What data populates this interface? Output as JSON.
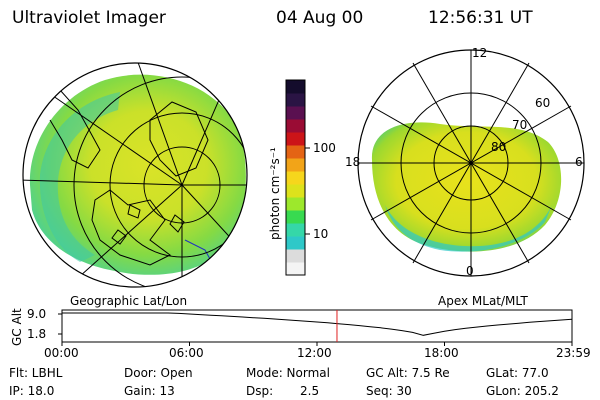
{
  "header": {
    "instrument": "Ultraviolet Imager",
    "date": "04 Aug 00",
    "time": "12:56:31 UT"
  },
  "geographic_panel": {
    "label": "Geographic Lat/Lon"
  },
  "apex_panel": {
    "label": "Apex MLat/MLT",
    "mlt_labels": {
      "top": "12",
      "left": "18",
      "right": "6",
      "bottom": "0"
    },
    "lat_labels": [
      "60",
      "70",
      "80"
    ]
  },
  "colorbar": {
    "unit_label": "photon cm⁻²s⁻¹",
    "scale": "log",
    "ticks": [
      "100",
      "10"
    ],
    "colors": [
      "#f4f4f4",
      "#dcdcdc",
      "#2ec8c8",
      "#35d7a8",
      "#38da50",
      "#9de82c",
      "#dde21c",
      "#f6d61c",
      "#f2a418",
      "#e46414",
      "#cc1418",
      "#9a0c34",
      "#5a1050",
      "#2a1444",
      "#140c2c"
    ]
  },
  "altitude_plot": {
    "ylabel": "GC Alt",
    "yticks": [
      "9.0",
      "1.8"
    ],
    "xticks": [
      "00:00",
      "06:00",
      "12:00",
      "18:00",
      "23:59"
    ],
    "cursor_hour": 12.94,
    "cursor_color": "#e02020",
    "orbit_min_hour": 17.1
  },
  "info": {
    "flt": "Flt: LBHL",
    "ip": "IP: 18.0",
    "door": "Door: Open",
    "gain": "Gain: 13",
    "mode": "Mode: Normal",
    "dsp_label": "Dsp:",
    "dsp_value": "2.5",
    "gc_alt": "GC Alt: 7.5 Re",
    "seq": "Seq: 30",
    "glat": "GLat: 77.0",
    "glon": "GLon: 205.2"
  }
}
